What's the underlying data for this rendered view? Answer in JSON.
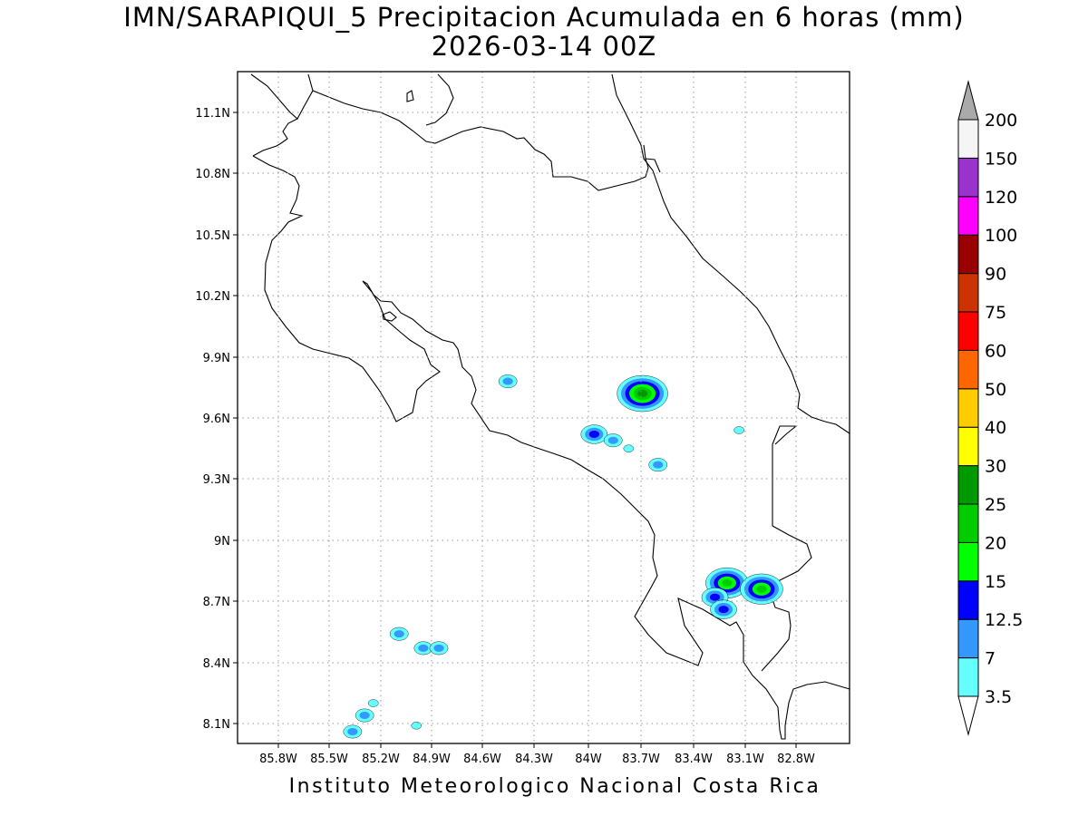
{
  "title": "IMN/SARAPIQUI_5 Precipitacion Acumulada en 6 horas (mm)",
  "subtitle": "2026-03-14 00Z",
  "footer": "Instituto Meteorologico Nacional Costa Rica",
  "map": {
    "lon_range": [
      -86.0,
      -83.0
    ],
    "lat_range": [
      8.0,
      11.3
    ],
    "x_ticks": [
      "85.8W",
      "85.5W",
      "85.2W",
      "84.9W",
      "84.6W",
      "84.3W",
      "84W",
      "83.7W",
      "83.4W",
      "83.1W",
      "82.8W"
    ],
    "y_ticks": [
      "11.1N",
      "10.8N",
      "10.5N",
      "10.2N",
      "9.9N",
      "9.6N",
      "9.3N",
      "9N",
      "8.7N",
      "8.4N",
      "8.1N"
    ],
    "grid": true
  },
  "colorbar": {
    "labels": [
      "3.5",
      "7",
      "12.5",
      "15",
      "20",
      "25",
      "30",
      "40",
      "50",
      "60",
      "75",
      "90",
      "100",
      "120",
      "150",
      "200"
    ],
    "colors": [
      "#66ffff",
      "#3399ff",
      "#0000ff",
      "#00ff00",
      "#00cc00",
      "#009900",
      "#ffff00",
      "#ffcc00",
      "#ff6600",
      "#ff0000",
      "#cc3300",
      "#990000",
      "#ff00ff",
      "#9933cc",
      "#f5f5f5"
    ],
    "max_arrow_color": "#aaaaaa",
    "min_arrow_color": "#ffffff"
  },
  "precip_cells": [
    {
      "lon": -84.47,
      "lat": 9.78,
      "level": "7"
    },
    {
      "lon": -83.69,
      "lat": 9.72,
      "level": "25"
    },
    {
      "lon": -83.97,
      "lat": 9.52,
      "level": "12.5"
    },
    {
      "lon": -83.86,
      "lat": 9.49,
      "level": "7"
    },
    {
      "lon": -83.77,
      "lat": 9.45,
      "level": "3.5"
    },
    {
      "lon": -83.6,
      "lat": 9.37,
      "level": "7"
    },
    {
      "lon": -83.13,
      "lat": 9.54,
      "level": "3.5"
    },
    {
      "lon": -83.2,
      "lat": 8.79,
      "level": "20"
    },
    {
      "lon": -83.0,
      "lat": 8.76,
      "level": "20"
    },
    {
      "lon": -83.27,
      "lat": 8.72,
      "level": "12.5"
    },
    {
      "lon": -83.22,
      "lat": 8.66,
      "level": "12.5"
    },
    {
      "lon": -85.1,
      "lat": 8.54,
      "level": "7"
    },
    {
      "lon": -84.96,
      "lat": 8.47,
      "level": "7"
    },
    {
      "lon": -84.87,
      "lat": 8.47,
      "level": "7"
    },
    {
      "lon": -85.25,
      "lat": 8.2,
      "level": "3.5"
    },
    {
      "lon": -85.3,
      "lat": 8.14,
      "level": "7"
    },
    {
      "lon": -85.37,
      "lat": 8.06,
      "level": "7"
    },
    {
      "lon": -85.0,
      "lat": 8.09,
      "level": "3.5"
    }
  ]
}
